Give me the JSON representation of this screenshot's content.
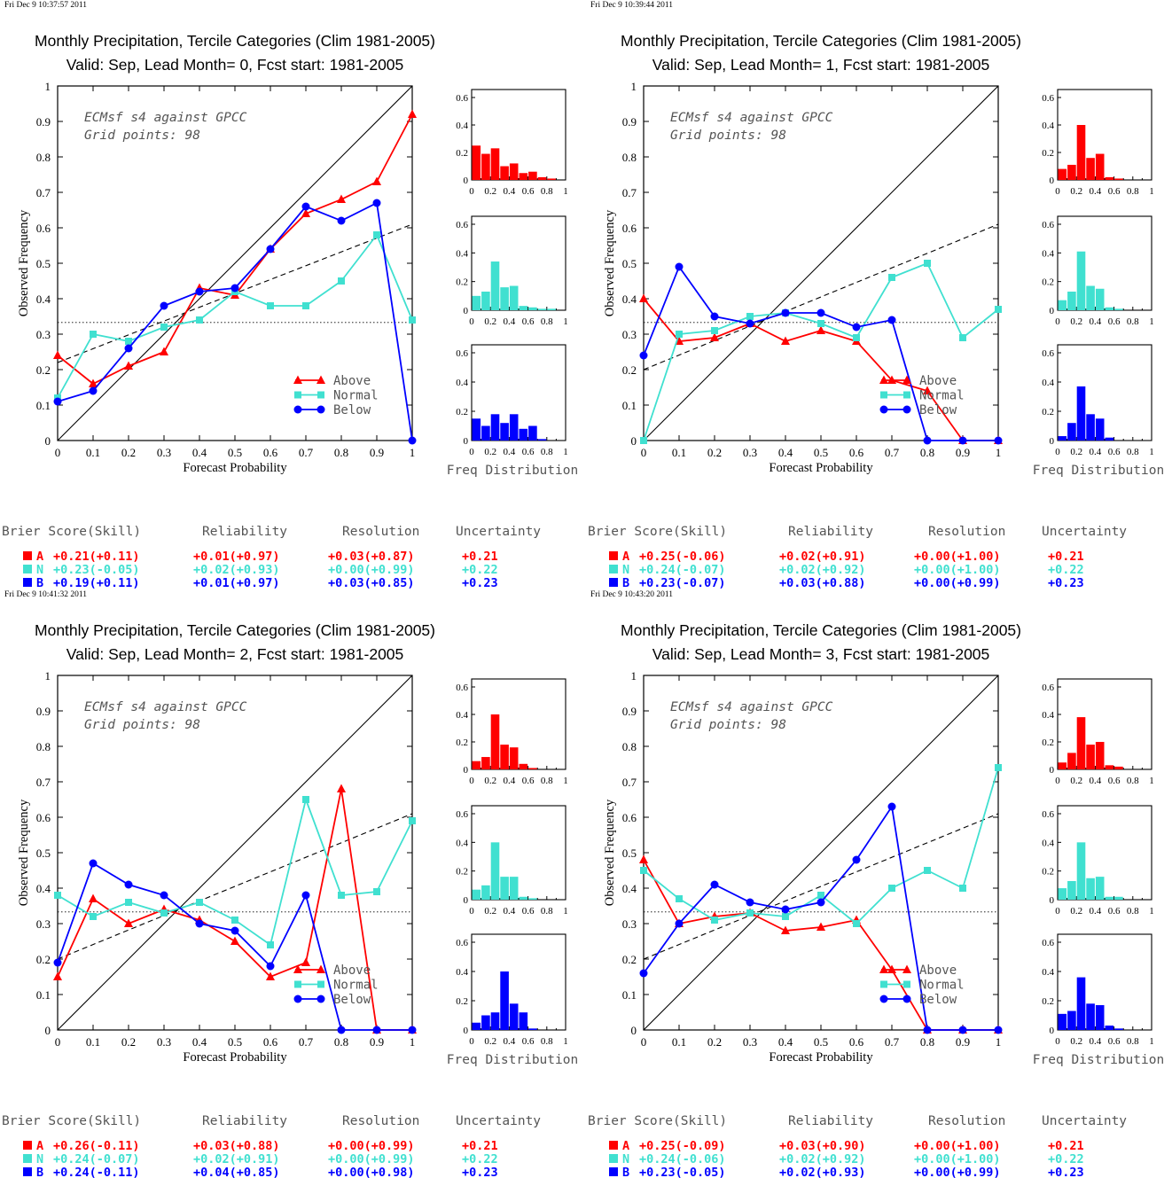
{
  "colors": {
    "above": "#ff0000",
    "normal": "#40e0d0",
    "below": "#0000ff",
    "axis": "#000000"
  },
  "common": {
    "xlabel": "Forecast Probability",
    "ylabel": "Observed Frequency",
    "annotation_line1": "ECMsf s4 against GPCC",
    "annotation_line2": "Grid points:    98",
    "freq_label": "Freq Distribution",
    "legend": [
      "Above",
      "Normal",
      "Below"
    ],
    "score_headers": [
      "Brier Score(Skill)",
      "Reliability",
      "Resolution",
      "Uncertainty"
    ],
    "score_letters": [
      "A",
      "N",
      "B"
    ]
  },
  "chart_data": [
    {
      "type": "line",
      "timestamp": "Fri Dec  9 10:37:57 2011",
      "title": "Monthly Precipitation, Tercile Categories (Clim 1981-2005)",
      "subtitle": "Valid: Sep, Lead Month= 0, Fcst start: 1981-2005",
      "x": [
        0,
        0.1,
        0.2,
        0.3,
        0.4,
        0.5,
        0.6,
        0.7,
        0.8,
        0.9,
        1.0
      ],
      "xlim": [
        0,
        1
      ],
      "ylim": [
        0,
        1
      ],
      "climatology": 0.333,
      "trend": [
        [
          0,
          0.22
        ],
        [
          1,
          0.61
        ]
      ],
      "series": [
        {
          "name": "Above",
          "values": [
            0.24,
            0.16,
            0.21,
            0.25,
            0.43,
            0.41,
            0.54,
            0.64,
            0.68,
            0.73,
            0.92
          ]
        },
        {
          "name": "Normal",
          "values": [
            0.12,
            0.3,
            0.28,
            0.32,
            0.34,
            0.42,
            0.38,
            0.38,
            0.45,
            0.58,
            0.34
          ]
        },
        {
          "name": "Below",
          "values": [
            0.11,
            0.14,
            0.26,
            0.38,
            0.42,
            0.43,
            0.54,
            0.66,
            0.62,
            0.67,
            0.0
          ]
        }
      ],
      "freq": {
        "ylim": [
          0,
          0.6
        ],
        "above": [
          0.25,
          0.19,
          0.23,
          0.1,
          0.12,
          0.05,
          0.06,
          0.02,
          0.01
        ],
        "normal": [
          0.1,
          0.13,
          0.34,
          0.16,
          0.17,
          0.03,
          0.02,
          0.01,
          0.01
        ],
        "below": [
          0.15,
          0.1,
          0.18,
          0.12,
          0.18,
          0.08,
          0.1,
          0.01,
          0.0
        ]
      },
      "scores": [
        {
          "brier": "+0.21(+0.11)",
          "reliability": "+0.01(+0.97)",
          "resolution": "+0.03(+0.87)",
          "uncertainty": "+0.21"
        },
        {
          "brier": "+0.23(-0.05)",
          "reliability": "+0.02(+0.93)",
          "resolution": "+0.00(+0.99)",
          "uncertainty": "+0.22"
        },
        {
          "brier": "+0.19(+0.11)",
          "reliability": "+0.01(+0.97)",
          "resolution": "+0.03(+0.85)",
          "uncertainty": "+0.23"
        }
      ]
    },
    {
      "type": "line",
      "timestamp": "Fri Dec  9 10:39:44 2011",
      "title": "Monthly Precipitation, Tercile Categories (Clim 1981-2005)",
      "subtitle": "Valid: Sep, Lead Month= 1, Fcst start: 1981-2005",
      "x": [
        0,
        0.1,
        0.2,
        0.3,
        0.4,
        0.5,
        0.6,
        0.7,
        0.8,
        0.9,
        1.0
      ],
      "xlim": [
        0,
        1
      ],
      "ylim": [
        0,
        1
      ],
      "climatology": 0.333,
      "trend": [
        [
          0,
          0.2
        ],
        [
          1,
          0.61
        ]
      ],
      "series": [
        {
          "name": "Above",
          "values": [
            0.4,
            0.28,
            0.29,
            0.33,
            0.28,
            0.31,
            0.28,
            0.17,
            0.14,
            0.0,
            0.0
          ]
        },
        {
          "name": "Normal",
          "values": [
            0.0,
            0.3,
            0.31,
            0.35,
            0.36,
            0.33,
            0.29,
            0.46,
            0.5,
            0.29,
            0.37
          ]
        },
        {
          "name": "Below",
          "values": [
            0.24,
            0.49,
            0.35,
            0.33,
            0.36,
            0.36,
            0.32,
            0.34,
            0.0,
            0.0,
            0.0
          ]
        }
      ],
      "freq": {
        "ylim": [
          0,
          0.6
        ],
        "above": [
          0.08,
          0.11,
          0.4,
          0.16,
          0.19,
          0.02,
          0.01,
          0.0,
          0.0
        ],
        "normal": [
          0.07,
          0.13,
          0.41,
          0.17,
          0.15,
          0.02,
          0.01,
          0.0,
          0.0
        ],
        "below": [
          0.03,
          0.12,
          0.37,
          0.18,
          0.15,
          0.02,
          0.0,
          0.0,
          0.0
        ]
      },
      "scores": [
        {
          "brier": "+0.25(-0.06)",
          "reliability": "+0.02(+0.91)",
          "resolution": "+0.00(+1.00)",
          "uncertainty": "+0.21"
        },
        {
          "brier": "+0.24(-0.07)",
          "reliability": "+0.02(+0.92)",
          "resolution": "+0.00(+1.00)",
          "uncertainty": "+0.22"
        },
        {
          "brier": "+0.23(-0.07)",
          "reliability": "+0.03(+0.88)",
          "resolution": "+0.00(+0.99)",
          "uncertainty": "+0.23"
        }
      ]
    },
    {
      "type": "line",
      "timestamp": "Fri Dec  9 10:41:32 2011",
      "title": "Monthly Precipitation, Tercile Categories (Clim 1981-2005)",
      "subtitle": "Valid: Sep, Lead Month= 2, Fcst start: 1981-2005",
      "x": [
        0,
        0.1,
        0.2,
        0.3,
        0.4,
        0.5,
        0.6,
        0.7,
        0.8,
        0.9,
        1.0
      ],
      "xlim": [
        0,
        1
      ],
      "ylim": [
        0,
        1
      ],
      "climatology": 0.333,
      "trend": [
        [
          0,
          0.2
        ],
        [
          1,
          0.61
        ]
      ],
      "series": [
        {
          "name": "Above",
          "values": [
            0.15,
            0.37,
            0.3,
            0.34,
            0.31,
            0.25,
            0.15,
            0.19,
            0.68,
            0.0,
            0.0
          ]
        },
        {
          "name": "Normal",
          "values": [
            0.38,
            0.32,
            0.36,
            0.33,
            0.36,
            0.31,
            0.24,
            0.65,
            0.38,
            0.39,
            0.59
          ]
        },
        {
          "name": "Below",
          "values": [
            0.19,
            0.47,
            0.41,
            0.38,
            0.3,
            0.28,
            0.18,
            0.38,
            0.0,
            0.0,
            0.0
          ]
        }
      ],
      "freq": {
        "ylim": [
          0,
          0.6
        ],
        "above": [
          0.06,
          0.09,
          0.4,
          0.18,
          0.16,
          0.04,
          0.01,
          0.0,
          0.0
        ],
        "normal": [
          0.07,
          0.1,
          0.4,
          0.16,
          0.16,
          0.02,
          0.01,
          0.0,
          0.0
        ],
        "below": [
          0.05,
          0.1,
          0.12,
          0.4,
          0.18,
          0.12,
          0.01,
          0.0,
          0.0
        ]
      },
      "scores": [
        {
          "brier": "+0.26(-0.11)",
          "reliability": "+0.03(+0.88)",
          "resolution": "+0.00(+0.99)",
          "uncertainty": "+0.21"
        },
        {
          "brier": "+0.24(-0.07)",
          "reliability": "+0.02(+0.91)",
          "resolution": "+0.00(+0.99)",
          "uncertainty": "+0.22"
        },
        {
          "brier": "+0.24(-0.11)",
          "reliability": "+0.04(+0.85)",
          "resolution": "+0.00(+0.98)",
          "uncertainty": "+0.23"
        }
      ]
    },
    {
      "type": "line",
      "timestamp": "Fri Dec  9 10:43:20 2011",
      "title": "Monthly Precipitation, Tercile Categories (Clim 1981-2005)",
      "subtitle": "Valid: Sep, Lead Month= 3, Fcst start: 1981-2005",
      "x": [
        0,
        0.1,
        0.2,
        0.3,
        0.4,
        0.5,
        0.6,
        0.7,
        0.8,
        0.9,
        1.0
      ],
      "xlim": [
        0,
        1
      ],
      "ylim": [
        0,
        1
      ],
      "climatology": 0.333,
      "trend": [
        [
          0,
          0.2
        ],
        [
          1,
          0.61
        ]
      ],
      "series": [
        {
          "name": "Above",
          "values": [
            0.48,
            0.3,
            0.32,
            0.33,
            0.28,
            0.29,
            0.31,
            0.17,
            0.0,
            0.0,
            0.0
          ]
        },
        {
          "name": "Normal",
          "values": [
            0.45,
            0.37,
            0.31,
            0.33,
            0.32,
            0.38,
            0.3,
            0.4,
            0.45,
            0.4,
            0.74
          ]
        },
        {
          "name": "Below",
          "values": [
            0.16,
            0.3,
            0.41,
            0.36,
            0.34,
            0.36,
            0.48,
            0.63,
            0.0,
            0.0,
            0.0
          ]
        }
      ],
      "freq": {
        "ylim": [
          0,
          0.6
        ],
        "above": [
          0.05,
          0.12,
          0.38,
          0.18,
          0.2,
          0.03,
          0.02,
          0.0,
          0.0
        ],
        "normal": [
          0.08,
          0.13,
          0.4,
          0.15,
          0.16,
          0.02,
          0.02,
          0.0,
          0.0
        ],
        "below": [
          0.11,
          0.13,
          0.36,
          0.18,
          0.17,
          0.03,
          0.01,
          0.0,
          0.0
        ]
      },
      "scores": [
        {
          "brier": "+0.25(-0.09)",
          "reliability": "+0.03(+0.90)",
          "resolution": "+0.00(+1.00)",
          "uncertainty": "+0.21"
        },
        {
          "brier": "+0.24(-0.06)",
          "reliability": "+0.02(+0.92)",
          "resolution": "+0.00(+1.00)",
          "uncertainty": "+0.22"
        },
        {
          "brier": "+0.23(-0.05)",
          "reliability": "+0.02(+0.93)",
          "resolution": "+0.00(+0.99)",
          "uncertainty": "+0.23"
        }
      ]
    }
  ]
}
